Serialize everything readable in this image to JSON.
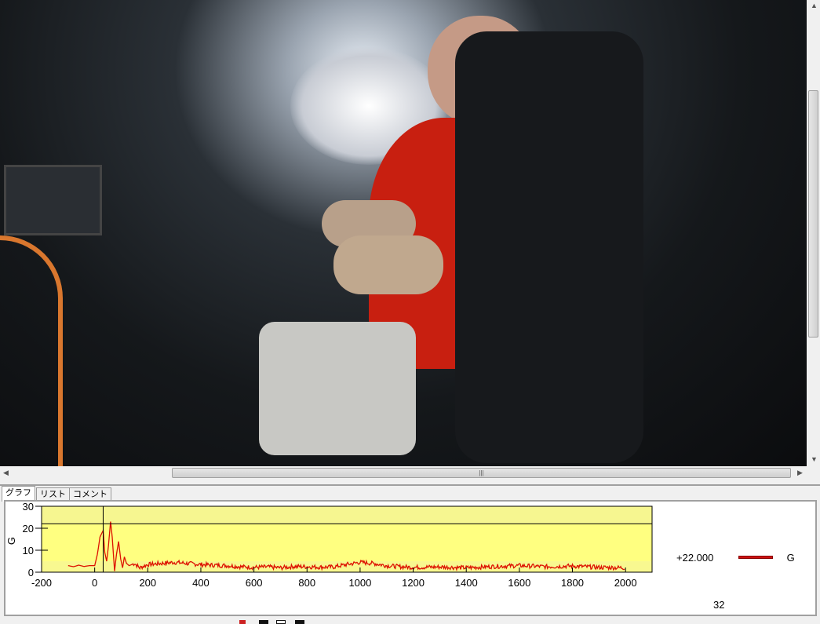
{
  "tabs": [
    {
      "label": "グラフ",
      "active": true
    },
    {
      "label": "リスト",
      "active": false
    },
    {
      "label": "コメント",
      "active": false
    }
  ],
  "legend": {
    "value": "+22.000",
    "series_name": "G",
    "color": "#cc1111"
  },
  "cursor_time": "32",
  "chart_data": {
    "type": "line",
    "ylabel": "G",
    "xlim": [
      -200,
      2100
    ],
    "ylim": [
      0,
      30
    ],
    "xticks": [
      "-200",
      "0",
      "200",
      "400",
      "600",
      "800",
      "1000",
      "1200",
      "1400",
      "1600",
      "1800",
      "2000"
    ],
    "yticks": [
      "0",
      "10",
      "20",
      "30"
    ],
    "threshold_line": 22,
    "cursor_x": 32,
    "plot_background": "#ffff80",
    "series": [
      {
        "color": "#dd1100",
        "points": [
          [
            -100,
            3
          ],
          [
            -80,
            2.5
          ],
          [
            -60,
            3.2
          ],
          [
            -40,
            2.6
          ],
          [
            -20,
            3
          ],
          [
            0,
            3
          ],
          [
            10,
            8
          ],
          [
            20,
            16
          ],
          [
            28,
            18
          ],
          [
            32,
            19
          ],
          [
            38,
            9
          ],
          [
            45,
            5
          ],
          [
            52,
            12
          ],
          [
            60,
            23
          ],
          [
            66,
            16
          ],
          [
            75,
            0.5
          ],
          [
            82,
            8
          ],
          [
            90,
            14
          ],
          [
            98,
            6
          ],
          [
            105,
            2
          ],
          [
            112,
            7
          ],
          [
            120,
            4
          ],
          [
            130,
            3
          ],
          [
            150,
            4
          ],
          [
            170,
            2
          ],
          [
            200,
            3.5
          ],
          [
            250,
            4
          ],
          [
            300,
            4.5
          ],
          [
            350,
            4
          ],
          [
            400,
            3.5
          ],
          [
            450,
            3.2
          ],
          [
            500,
            3
          ],
          [
            550,
            2.5
          ],
          [
            600,
            2.2
          ],
          [
            650,
            2.4
          ],
          [
            700,
            2
          ],
          [
            750,
            2.6
          ],
          [
            800,
            2.5
          ],
          [
            850,
            2.3
          ],
          [
            900,
            2.4
          ],
          [
            950,
            3.5
          ],
          [
            1000,
            4.5
          ],
          [
            1050,
            4
          ],
          [
            1100,
            3
          ],
          [
            1150,
            2.5
          ],
          [
            1200,
            2.2
          ],
          [
            1300,
            2.4
          ],
          [
            1400,
            2
          ],
          [
            1500,
            2.6
          ],
          [
            1600,
            3
          ],
          [
            1700,
            2.5
          ],
          [
            1800,
            2.8
          ],
          [
            1900,
            2.2
          ],
          [
            2000,
            2
          ]
        ]
      }
    ]
  }
}
